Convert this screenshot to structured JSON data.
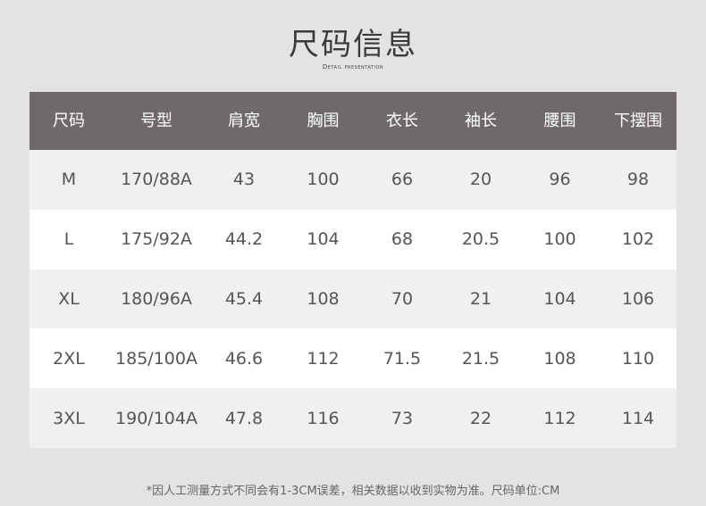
{
  "title": "尺码信息",
  "subtitle": "Detail presentation",
  "table": {
    "headers": [
      "尺码",
      "号型",
      "肩宽",
      "胸围",
      "衣长",
      "袖长",
      "腰围",
      "下摆围"
    ],
    "rows": [
      [
        "M",
        "170/88A",
        "43",
        "100",
        "66",
        "20",
        "96",
        "98"
      ],
      [
        "L",
        "175/92A",
        "44.2",
        "104",
        "68",
        "20.5",
        "100",
        "102"
      ],
      [
        "XL",
        "180/96A",
        "45.4",
        "108",
        "70",
        "21",
        "104",
        "106"
      ],
      [
        "2XL",
        "185/100A",
        "46.6",
        "112",
        "71.5",
        "21.5",
        "108",
        "110"
      ],
      [
        "3XL",
        "190/104A",
        "47.8",
        "116",
        "73",
        "22",
        "112",
        "114"
      ]
    ]
  },
  "note": "*因人工测量方式不同会有1-3CM误差，相关数据以收到实物为准。尺码单位:CM",
  "colors": {
    "header_bg": "#6e6a69",
    "row_alt": "#f0f0f0",
    "row": "#ffffff",
    "page_bg": "#e3e3e3"
  }
}
